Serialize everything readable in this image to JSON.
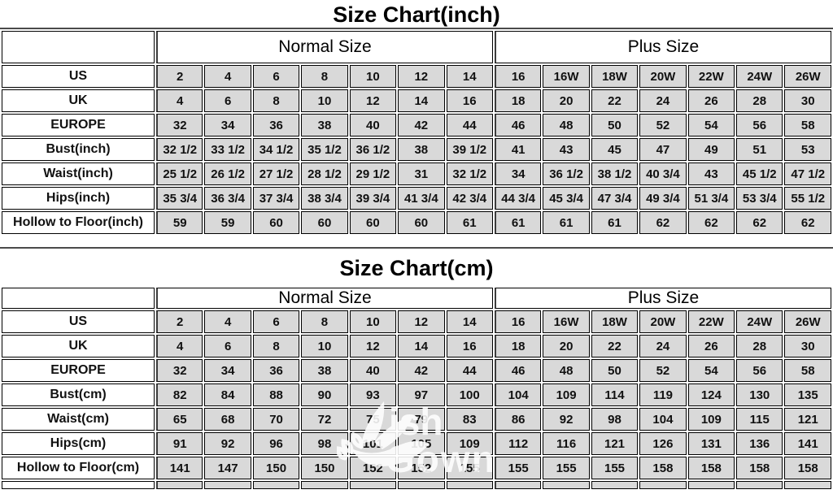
{
  "colors": {
    "cell_bg": "#d9d9d9",
    "cell_border": "#000000",
    "divider": "#3d3d3d",
    "watermark": "#ffffff"
  },
  "watermark": {
    "brand": "Wish Gown",
    "text_top": "ish",
    "text_bottom": "Gown"
  },
  "chart_data": [
    {
      "type": "table",
      "title": "Size Chart(inch)",
      "group_headers": [
        "Normal Size",
        "Plus Size"
      ],
      "columns_per_group": 7,
      "rows": [
        {
          "label": "US",
          "values": [
            "2",
            "4",
            "6",
            "8",
            "10",
            "12",
            "14",
            "16",
            "16W",
            "18W",
            "20W",
            "22W",
            "24W",
            "26W"
          ]
        },
        {
          "label": "UK",
          "values": [
            "4",
            "6",
            "8",
            "10",
            "12",
            "14",
            "16",
            "18",
            "20",
            "22",
            "24",
            "26",
            "28",
            "30"
          ]
        },
        {
          "label": "EUROPE",
          "values": [
            "32",
            "34",
            "36",
            "38",
            "40",
            "42",
            "44",
            "46",
            "48",
            "50",
            "52",
            "54",
            "56",
            "58"
          ]
        },
        {
          "label": "Bust(inch)",
          "values": [
            "32 1/2",
            "33 1/2",
            "34 1/2",
            "35 1/2",
            "36 1/2",
            "38",
            "39 1/2",
            "41",
            "43",
            "45",
            "47",
            "49",
            "51",
            "53"
          ]
        },
        {
          "label": "Waist(inch)",
          "values": [
            "25 1/2",
            "26 1/2",
            "27 1/2",
            "28 1/2",
            "29 1/2",
            "31",
            "32 1/2",
            "34",
            "36 1/2",
            "38 1/2",
            "40 3/4",
            "43",
            "45 1/2",
            "47 1/2"
          ]
        },
        {
          "label": "Hips(inch)",
          "values": [
            "35 3/4",
            "36 3/4",
            "37 3/4",
            "38 3/4",
            "39 3/4",
            "41 3/4",
            "42 3/4",
            "44 3/4",
            "45 3/4",
            "47 3/4",
            "49 3/4",
            "51 3/4",
            "53 3/4",
            "55 1/2"
          ]
        },
        {
          "label": "Hollow to Floor(inch)",
          "values": [
            "59",
            "59",
            "60",
            "60",
            "60",
            "60",
            "61",
            "61",
            "61",
            "61",
            "62",
            "62",
            "62",
            "62"
          ]
        }
      ]
    },
    {
      "type": "table",
      "title": "Size Chart(cm)",
      "group_headers": [
        "Normal Size",
        "Plus Size"
      ],
      "columns_per_group": 7,
      "rows": [
        {
          "label": "US",
          "values": [
            "2",
            "4",
            "6",
            "8",
            "10",
            "12",
            "14",
            "16",
            "16W",
            "18W",
            "20W",
            "22W",
            "24W",
            "26W"
          ]
        },
        {
          "label": "UK",
          "values": [
            "4",
            "6",
            "8",
            "10",
            "12",
            "14",
            "16",
            "18",
            "20",
            "22",
            "24",
            "26",
            "28",
            "30"
          ]
        },
        {
          "label": "EUROPE",
          "values": [
            "32",
            "34",
            "36",
            "38",
            "40",
            "42",
            "44",
            "46",
            "48",
            "50",
            "52",
            "54",
            "56",
            "58"
          ]
        },
        {
          "label": "Bust(cm)",
          "values": [
            "82",
            "84",
            "88",
            "90",
            "93",
            "97",
            "100",
            "104",
            "109",
            "114",
            "119",
            "124",
            "130",
            "135"
          ]
        },
        {
          "label": "Waist(cm)",
          "values": [
            "65",
            "68",
            "70",
            "72",
            "75",
            "79",
            "83",
            "86",
            "92",
            "98",
            "104",
            "109",
            "115",
            "121"
          ]
        },
        {
          "label": "Hips(cm)",
          "values": [
            "91",
            "92",
            "96",
            "98",
            "101",
            "105",
            "109",
            "112",
            "116",
            "121",
            "126",
            "131",
            "136",
            "141"
          ]
        },
        {
          "label": "Hollow to Floor(cm)",
          "values": [
            "141",
            "147",
            "150",
            "150",
            "152",
            "152",
            "155",
            "155",
            "155",
            "155",
            "158",
            "158",
            "158",
            "158"
          ]
        }
      ]
    }
  ]
}
